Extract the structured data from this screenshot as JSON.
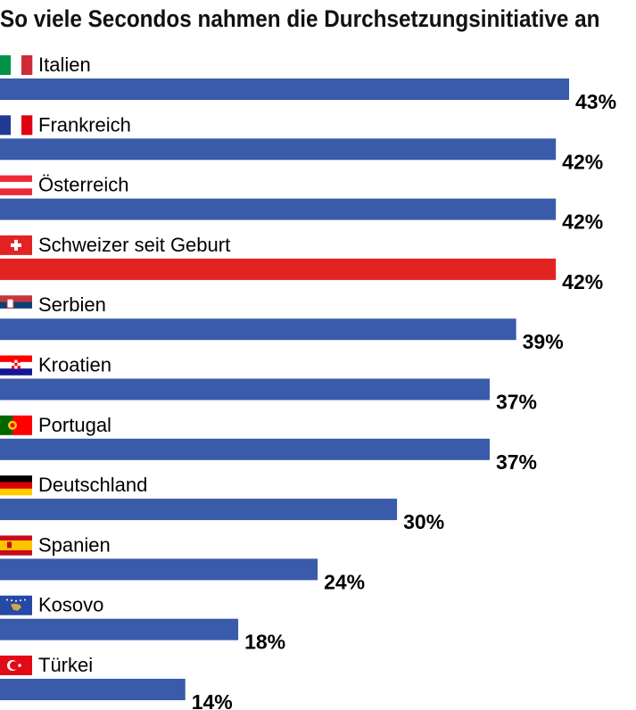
{
  "chart_data": {
    "type": "bar",
    "orientation": "horizontal",
    "title": "So viele Secondos nahmen die Durchsetzungsinitiative an",
    "categories": [
      "Italien",
      "Frankreich",
      "Österreich",
      "Schweizer seit Geburt",
      "Serbien",
      "Kroatien",
      "Portugal",
      "Deutschland",
      "Spanien",
      "Kosovo",
      "Türkei"
    ],
    "values": [
      43,
      42,
      42,
      42,
      39,
      37,
      37,
      30,
      24,
      18,
      14
    ],
    "value_labels": [
      "43%",
      "42%",
      "42%",
      "42%",
      "39%",
      "37%",
      "37%",
      "30%",
      "24%",
      "18%",
      "14%"
    ],
    "flags": [
      "italy-flag",
      "france-flag",
      "austria-flag",
      "switzerland-flag",
      "serbia-flag",
      "croatia-flag",
      "portugal-flag",
      "germany-flag",
      "spain-flag",
      "kosovo-flag",
      "turkey-flag"
    ],
    "bar_colors": [
      "#3a5ba9",
      "#3a5ba9",
      "#3a5ba9",
      "#e32322",
      "#3a5ba9",
      "#3a5ba9",
      "#3a5ba9",
      "#3a5ba9",
      "#3a5ba9",
      "#3a5ba9",
      "#3a5ba9"
    ],
    "xlim": [
      0,
      43
    ],
    "grid": false,
    "legend": "none"
  }
}
